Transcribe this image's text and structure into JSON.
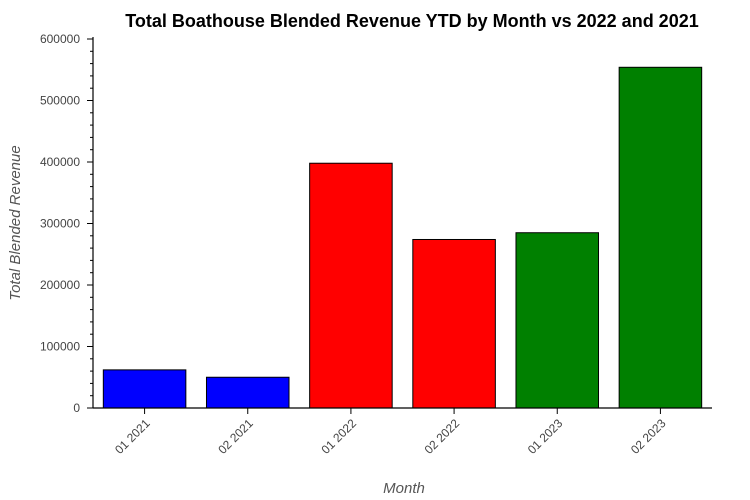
{
  "chart_data": {
    "type": "bar",
    "title": "Total Boathouse Blended Revenue YTD by Month vs 2022 and 2021",
    "xlabel": "Month",
    "ylabel": "Total Blended Revenue",
    "categories": [
      "01 2021",
      "02 2021",
      "01 2022",
      "02 2022",
      "01 2023",
      "02 2023"
    ],
    "values": [
      62000,
      50000,
      398000,
      274000,
      285000,
      554000
    ],
    "colors": [
      "#0000ff",
      "#0000ff",
      "#ff0000",
      "#ff0000",
      "#008000",
      "#008000"
    ],
    "ylim": [
      0,
      600000
    ],
    "yticks": [
      "0",
      "100000",
      "200000",
      "300000",
      "400000",
      "500000",
      "600000"
    ],
    "grid": false,
    "legend": "none"
  }
}
